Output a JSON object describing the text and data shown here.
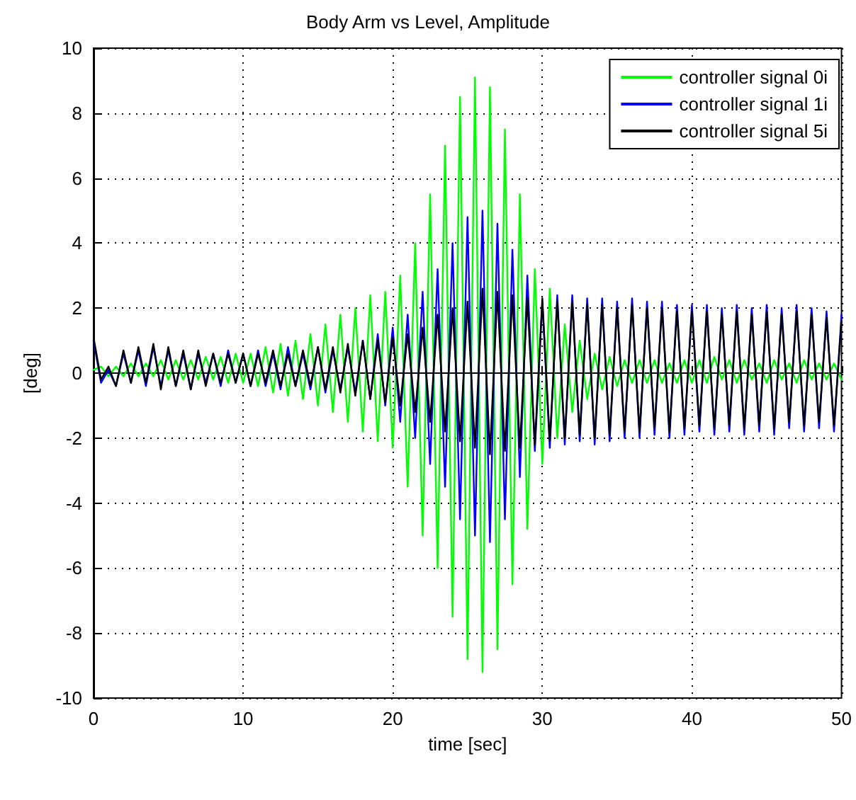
{
  "chart_data": {
    "type": "line",
    "title": "Body Arm vs Level, Amplitude",
    "xlabel": "time [sec]",
    "ylabel": "[deg]",
    "x": [
      0,
      0.5,
      1,
      1.5,
      2,
      2.5,
      3,
      3.5,
      4,
      4.5,
      5,
      5.5,
      6,
      6.5,
      7,
      7.5,
      8,
      8.5,
      9,
      9.5,
      10,
      10.5,
      11,
      11.5,
      12,
      12.5,
      13,
      13.5,
      14,
      14.5,
      15,
      15.5,
      16,
      16.5,
      17,
      17.5,
      18,
      18.5,
      19,
      19.5,
      20,
      20.5,
      21,
      21.5,
      22,
      22.5,
      23,
      23.5,
      24,
      24.5,
      25,
      25.5,
      26,
      26.5,
      27,
      27.5,
      28,
      28.5,
      29,
      29.5,
      30,
      30.5,
      31,
      31.5,
      32,
      32.5,
      33,
      33.5,
      34,
      34.5,
      35,
      35.5,
      36,
      36.5,
      37,
      37.5,
      38,
      38.5,
      39,
      39.5,
      40,
      40.5,
      41,
      41.5,
      42,
      42.5,
      43,
      43.5,
      44,
      44.5,
      45,
      45.5,
      46,
      46.5,
      47,
      47.5,
      48,
      48.5,
      49,
      49.5,
      50
    ],
    "series": [
      {
        "name": "controller signal 0i",
        "color": "#00ff00",
        "values": [
          0.1,
          0.2,
          -0.1,
          0.2,
          -0.1,
          0.3,
          -0.1,
          0.3,
          -0.1,
          0.4,
          -0.2,
          0.4,
          -0.2,
          0.4,
          -0.2,
          0.5,
          -0.2,
          0.5,
          -0.3,
          0.6,
          -0.3,
          0.6,
          -0.4,
          0.8,
          -0.6,
          0.9,
          -0.7,
          1.0,
          -0.8,
          1.2,
          -1.0,
          1.5,
          -1.2,
          1.8,
          -1.5,
          2.0,
          -1.8,
          2.4,
          -2.1,
          2.5,
          -2.3,
          3.0,
          -3.5,
          4.0,
          -5.0,
          5.5,
          -6.0,
          7.0,
          -7.5,
          8.5,
          -8.8,
          9.1,
          -9.2,
          8.8,
          -8.5,
          7.5,
          -6.5,
          5.5,
          -4.8,
          3.2,
          -2.8,
          2.6,
          -2.0,
          1.5,
          -1.2,
          1.0,
          -0.8,
          0.6,
          -0.5,
          0.5,
          -0.4,
          0.4,
          -0.3,
          0.4,
          -0.3,
          0.4,
          -0.3,
          0.3,
          -0.3,
          0.4,
          -0.3,
          0.4,
          -0.3,
          0.5,
          -0.2,
          0.4,
          -0.3,
          0.4,
          -0.2,
          0.3,
          -0.3,
          0.4,
          -0.2,
          0.3,
          -0.3,
          0.4,
          -0.2,
          0.3,
          -0.2,
          0.3,
          -0.2
        ]
      },
      {
        "name": "controller signal 1i",
        "color": "#0000ff",
        "values": [
          1.0,
          -0.3,
          0.1,
          -0.4,
          0.6,
          -0.3,
          0.7,
          -0.4,
          0.8,
          -0.4,
          0.7,
          -0.4,
          0.6,
          -0.5,
          0.6,
          -0.3,
          0.6,
          -0.4,
          0.7,
          -0.3,
          0.6,
          -0.4,
          0.7,
          -0.4,
          0.6,
          -0.5,
          0.8,
          -0.4,
          0.6,
          -0.5,
          0.8,
          -0.6,
          0.7,
          -0.5,
          0.8,
          -0.6,
          1.0,
          -0.8,
          1.2,
          -1.0,
          1.4,
          -1.5,
          1.8,
          -2.0,
          2.5,
          -2.8,
          3.2,
          -3.5,
          4.0,
          -4.5,
          4.8,
          -5.0,
          5.0,
          -5.2,
          4.6,
          -4.5,
          3.8,
          -3.2,
          3.0,
          -2.4,
          2.2,
          -2.3,
          2.4,
          -2.2,
          2.4,
          -2.1,
          2.3,
          -2.2,
          2.3,
          -2.1,
          2.2,
          -2.0,
          2.3,
          -2.0,
          2.2,
          -1.9,
          2.2,
          -2.0,
          2.1,
          -1.9,
          2.1,
          -1.8,
          2.1,
          -1.9,
          2.0,
          -1.8,
          2.1,
          -1.9,
          2.0,
          -1.8,
          2.1,
          -1.9,
          2.0,
          -1.7,
          2.1,
          -1.8,
          2.0,
          -1.7,
          1.9,
          -1.8,
          1.8
        ]
      },
      {
        "name": "controller signal 5i",
        "color": "#000000",
        "values": [
          1.1,
          -0.2,
          0.2,
          -0.4,
          0.7,
          -0.3,
          0.8,
          -0.3,
          0.9,
          -0.5,
          0.8,
          -0.4,
          0.7,
          -0.5,
          0.7,
          -0.4,
          0.6,
          -0.3,
          0.6,
          -0.3,
          0.6,
          -0.4,
          0.6,
          -0.3,
          0.7,
          -0.4,
          0.6,
          -0.4,
          0.7,
          -0.4,
          0.8,
          -0.5,
          0.8,
          -0.6,
          0.9,
          -0.7,
          1.0,
          -0.8,
          1.0,
          -0.9,
          1.1,
          -1.0,
          1.2,
          -1.2,
          1.4,
          -1.5,
          1.8,
          -1.8,
          2.0,
          -2.1,
          2.2,
          -2.3,
          2.6,
          -2.5,
          2.5,
          -2.4,
          2.4,
          -2.3,
          2.3,
          -2.2,
          2.3,
          -2.1,
          2.2,
          -2.0,
          2.2,
          -1.9,
          2.1,
          -2.0,
          2.1,
          -1.9,
          2.0,
          -1.8,
          2.1,
          -1.8,
          2.0,
          -1.7,
          2.0,
          -1.8,
          1.9,
          -1.7,
          1.9,
          -1.6,
          1.9,
          -1.7,
          1.8,
          -1.6,
          1.9,
          -1.7,
          1.8,
          -1.6,
          1.9,
          -1.7,
          1.8,
          -1.5,
          1.9,
          -1.6,
          1.8,
          -1.5,
          1.7,
          -1.6,
          1.6
        ]
      }
    ],
    "xlim": [
      0,
      50
    ],
    "xticks": [
      0,
      10,
      20,
      30,
      40,
      50
    ],
    "ylim": [
      -10,
      10
    ],
    "yticks": [
      -10,
      -8,
      -6,
      -4,
      -2,
      0,
      2,
      4,
      6,
      8,
      10
    ],
    "grid": true,
    "legend": "top right",
    "line_style": "solid",
    "marker": "none"
  }
}
